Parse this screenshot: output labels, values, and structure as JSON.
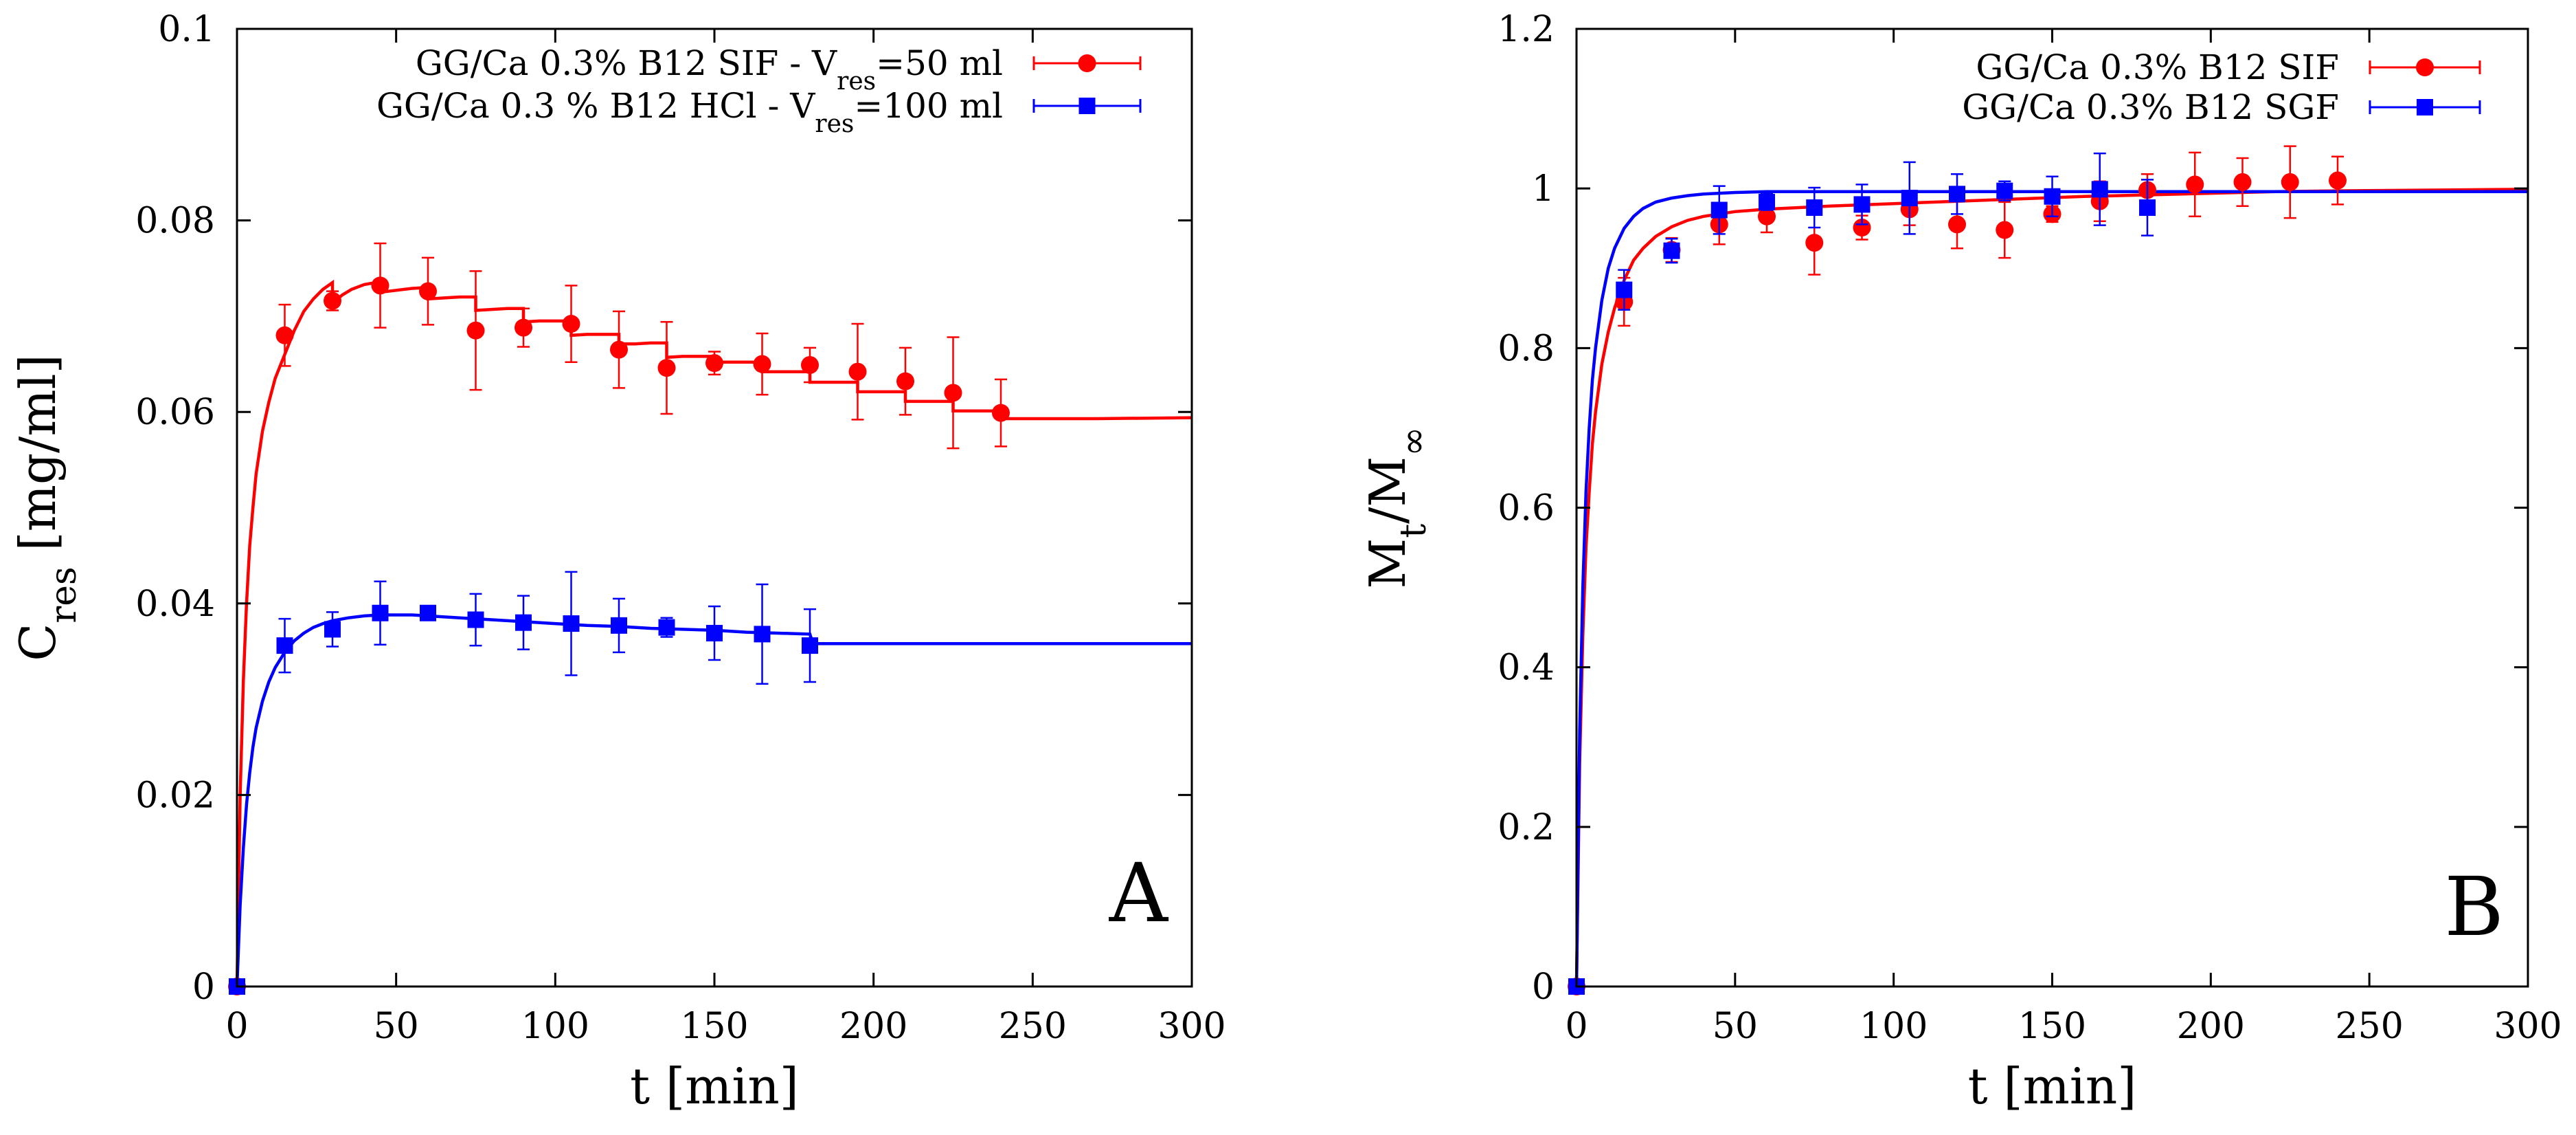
{
  "figure": {
    "panels": [
      "A",
      "B"
    ]
  },
  "chart_data": [
    {
      "panel": "A",
      "type": "scatter",
      "title": "",
      "xlabel": "t [min]",
      "ylabel": {
        "main": "C",
        "sub": "res",
        "rest": " [mg/ml]"
      },
      "xlim": [
        0,
        300
      ],
      "ylim": [
        0,
        0.1
      ],
      "xticks": [
        0,
        50,
        100,
        150,
        200,
        250,
        300
      ],
      "yticks": [
        0,
        0.02,
        0.04,
        0.06,
        0.08,
        0.1
      ],
      "xtick_labels": [
        "0",
        "50",
        "100",
        "150",
        "200",
        "250",
        "300"
      ],
      "ytick_labels": [
        "0",
        "0.02",
        "0.04",
        "0.06",
        "0.08",
        "0.1"
      ],
      "grid": false,
      "legend_position": "top-right",
      "series": [
        {
          "name": "GG/Ca 0.3% B12 SIF - V_res=50 ml",
          "legend": {
            "pre": "GG/Ca 0.3% B12 SIF - V",
            "sub": "res",
            "post": "=50 ml"
          },
          "color": "#ff0000",
          "marker": "circle",
          "x": [
            0,
            15,
            30,
            45,
            60,
            75,
            90,
            105,
            120,
            135,
            150,
            165,
            180,
            195,
            210,
            225,
            240
          ],
          "y": [
            0,
            0.068,
            0.0716,
            0.0732,
            0.0726,
            0.0685,
            0.0688,
            0.0692,
            0.0665,
            0.0646,
            0.0651,
            0.065,
            0.0649,
            0.0642,
            0.0632,
            0.062,
            0.0599
          ],
          "err": [
            0,
            0.0032,
            0.001,
            0.0044,
            0.0035,
            0.0062,
            0.002,
            0.004,
            0.004,
            0.0048,
            0.0012,
            0.0032,
            0.0018,
            0.005,
            0.0035,
            0.0058,
            0.0035
          ]
        },
        {
          "name": "GG/Ca 0.3 % B12 HCl - V_res=100 ml",
          "legend": {
            "pre": "GG/Ca 0.3 % B12  HCl - V",
            "sub": "res",
            "post": "=100 ml"
          },
          "color": "#0000ff",
          "marker": "square",
          "x": [
            0,
            15,
            30,
            45,
            60,
            75,
            90,
            105,
            120,
            135,
            150,
            165,
            180
          ],
          "y": [
            0,
            0.0356,
            0.0373,
            0.039,
            0.039,
            0.0383,
            0.038,
            0.0379,
            0.0377,
            0.0375,
            0.0369,
            0.0368,
            0.0356
          ],
          "err": [
            0,
            0.0028,
            0.0018,
            0.0033,
            0.0005,
            0.0027,
            0.0028,
            0.0054,
            0.0028,
            0.001,
            0.0028,
            0.0052,
            0.0038
          ]
        }
      ],
      "fits": [
        {
          "series": "GG/Ca 0.3% B12 SIF - V_res=50 ml",
          "color": "#ff0000",
          "x": [
            0,
            1,
            2,
            3,
            4,
            5,
            6,
            8,
            10,
            12,
            15,
            18,
            21,
            24,
            27,
            30,
            30,
            33,
            36,
            40,
            45,
            45,
            50,
            55,
            60,
            60,
            65,
            70,
            75,
            75,
            80,
            85,
            90,
            90,
            95,
            100,
            105,
            105,
            110,
            115,
            120,
            120,
            125,
            130,
            135,
            135,
            140,
            145,
            150,
            150,
            155,
            160,
            165,
            165,
            170,
            175,
            180,
            180,
            185,
            190,
            195,
            195,
            200,
            205,
            210,
            210,
            215,
            220,
            225,
            225,
            230,
            235,
            240,
            240,
            270,
            300
          ],
          "y": [
            0,
            0.02,
            0.032,
            0.04,
            0.046,
            0.05,
            0.0535,
            0.058,
            0.061,
            0.0635,
            0.066,
            0.0685,
            0.0705,
            0.0718,
            0.0728,
            0.0735,
            0.0713,
            0.0722,
            0.0728,
            0.0733,
            0.0736,
            0.0725,
            0.0727,
            0.0729,
            0.073,
            0.0718,
            0.0719,
            0.072,
            0.072,
            0.0706,
            0.0707,
            0.0708,
            0.0708,
            0.0694,
            0.0695,
            0.0695,
            0.0695,
            0.068,
            0.0681,
            0.0681,
            0.0681,
            0.0671,
            0.0671,
            0.0672,
            0.0672,
            0.0657,
            0.0658,
            0.0658,
            0.0658,
            0.0652,
            0.0652,
            0.0652,
            0.0652,
            0.0642,
            0.0642,
            0.0642,
            0.0642,
            0.0631,
            0.0631,
            0.0631,
            0.0631,
            0.0621,
            0.0621,
            0.0621,
            0.0621,
            0.0611,
            0.0611,
            0.0611,
            0.0611,
            0.0601,
            0.0601,
            0.0601,
            0.0601,
            0.0593,
            0.0593,
            0.0594
          ]
        },
        {
          "series": "GG/Ca 0.3 % B12 HCl - V_res=100 ml",
          "color": "#0000ff",
          "x": [
            0,
            1,
            2,
            3,
            4,
            5,
            6,
            8,
            10,
            12,
            15,
            18,
            21,
            24,
            27,
            30,
            35,
            40,
            45,
            50,
            55,
            60,
            70,
            80,
            90,
            100,
            110,
            120,
            130,
            140,
            150,
            160,
            170,
            180,
            181,
            190,
            200,
            250,
            300
          ],
          "y": [
            0,
            0.0085,
            0.0145,
            0.019,
            0.0223,
            0.025,
            0.027,
            0.0298,
            0.0318,
            0.0333,
            0.0349,
            0.0361,
            0.0369,
            0.0375,
            0.0379,
            0.0382,
            0.0385,
            0.0387,
            0.0388,
            0.0388,
            0.0388,
            0.0387,
            0.0385,
            0.0383,
            0.0381,
            0.0379,
            0.0377,
            0.0376,
            0.0374,
            0.0373,
            0.0372,
            0.037,
            0.0369,
            0.0368,
            0.0358,
            0.0358,
            0.0358,
            0.0358,
            0.0358
          ]
        }
      ]
    },
    {
      "panel": "B",
      "type": "scatter",
      "title": "",
      "xlabel": "t [min]",
      "ylabel": {
        "main": "M",
        "sub": "t",
        "mid": "/M",
        "sub2": "∞"
      },
      "xlim": [
        0,
        300
      ],
      "ylim": [
        0,
        1.2
      ],
      "xticks": [
        0,
        50,
        100,
        150,
        200,
        250,
        300
      ],
      "yticks": [
        0,
        0.2,
        0.4,
        0.6,
        0.8,
        1,
        1.2
      ],
      "xtick_labels": [
        "0",
        "50",
        "100",
        "150",
        "200",
        "250",
        "300"
      ],
      "ytick_labels": [
        "0",
        "0.2",
        "0.4",
        "0.6",
        "0.8",
        "1",
        "1.2"
      ],
      "grid": false,
      "legend_position": "top-right",
      "series": [
        {
          "name": "GG/Ca 0.3% B12 SIF",
          "legend": {
            "pre": "GG/Ca 0.3% B12 SIF",
            "sub": "",
            "post": ""
          },
          "color": "#ff0000",
          "marker": "circle",
          "x": [
            0,
            15,
            30,
            45,
            60,
            75,
            90,
            105,
            120,
            135,
            150,
            165,
            180,
            195,
            210,
            225,
            240
          ],
          "y": [
            0,
            0.858,
            0.923,
            0.955,
            0.965,
            0.932,
            0.951,
            0.974,
            0.955,
            0.948,
            0.968,
            0.984,
            0.998,
            1.005,
            1.008,
            1.008,
            1.01
          ],
          "err": [
            0,
            0.03,
            0.015,
            0.025,
            0.02,
            0.04,
            0.015,
            0.02,
            0.03,
            0.035,
            0.01,
            0.025,
            0.02,
            0.04,
            0.03,
            0.045,
            0.03
          ]
        },
        {
          "name": "GG/Ca 0.3% B12 SGF",
          "legend": {
            "pre": "GG/Ca 0.3% B12 SGF",
            "sub": "",
            "post": ""
          },
          "color": "#0000ff",
          "marker": "square",
          "x": [
            0,
            15,
            30,
            45,
            60,
            75,
            90,
            105,
            120,
            135,
            150,
            165,
            180
          ],
          "y": [
            0,
            0.873,
            0.922,
            0.973,
            0.983,
            0.976,
            0.98,
            0.988,
            0.993,
            0.997,
            0.99,
            0.999,
            0.976
          ],
          "err": [
            0,
            0.025,
            0.015,
            0.03,
            0.01,
            0.025,
            0.025,
            0.045,
            0.025,
            0.012,
            0.025,
            0.045,
            0.035
          ]
        }
      ],
      "fits": [
        {
          "series": "GG/Ca 0.3% B12 SIF",
          "color": "#ff0000",
          "x": [
            0,
            1,
            2,
            3,
            4,
            5,
            6,
            8,
            10,
            12,
            15,
            18,
            21,
            25,
            30,
            35,
            40,
            45,
            50,
            60,
            70,
            80,
            100,
            120,
            140,
            160,
            180,
            200,
            220,
            240,
            270,
            300
          ],
          "y": [
            0,
            0.28,
            0.44,
            0.55,
            0.62,
            0.68,
            0.72,
            0.78,
            0.82,
            0.85,
            0.885,
            0.91,
            0.925,
            0.94,
            0.952,
            0.96,
            0.965,
            0.968,
            0.971,
            0.974,
            0.976,
            0.978,
            0.981,
            0.984,
            0.987,
            0.99,
            0.992,
            0.994,
            0.996,
            0.997,
            0.998,
            0.999
          ]
        },
        {
          "series": "GG/Ca 0.3% B12 SGF",
          "color": "#0000ff",
          "x": [
            0,
            1,
            2,
            3,
            4,
            5,
            6,
            8,
            10,
            12,
            15,
            18,
            21,
            25,
            30,
            35,
            40,
            45,
            50,
            60,
            80,
            100,
            150,
            200,
            250,
            300
          ],
          "y": [
            0,
            0.32,
            0.5,
            0.62,
            0.7,
            0.76,
            0.8,
            0.86,
            0.9,
            0.925,
            0.95,
            0.965,
            0.975,
            0.983,
            0.988,
            0.991,
            0.993,
            0.994,
            0.995,
            0.996,
            0.996,
            0.996,
            0.996,
            0.996,
            0.996,
            0.996
          ]
        }
      ]
    }
  ]
}
